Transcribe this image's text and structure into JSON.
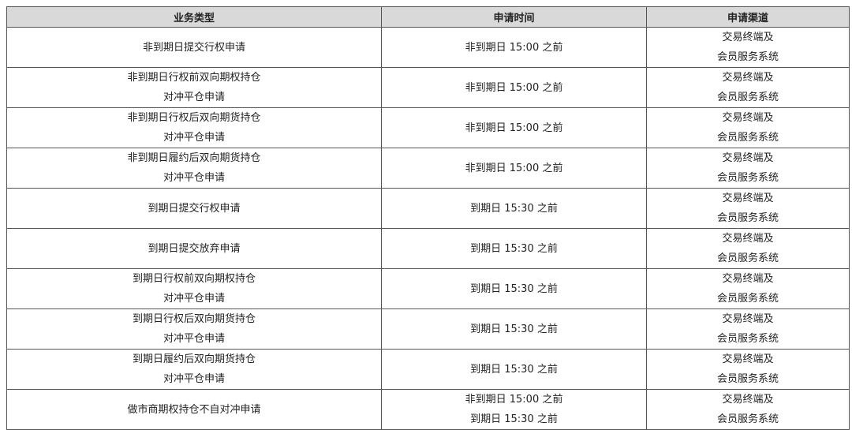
{
  "headers": [
    "业务类型",
    "申请时间",
    "申请渠道"
  ],
  "rows": [
    {
      "type": [
        "非到期日提交行权申请"
      ],
      "time": [
        "非到期日 15:00 之前"
      ],
      "channel": [
        "交易终端及",
        "会员服务系统"
      ]
    },
    {
      "type": [
        "非到期日行权前双向期权持仓",
        "对冲平仓申请"
      ],
      "time": [
        "非到期日 15:00 之前"
      ],
      "channel": [
        "交易终端及",
        "会员服务系统"
      ]
    },
    {
      "type": [
        "非到期日行权后双向期货持仓",
        "对冲平仓申请"
      ],
      "time": [
        "非到期日 15:00 之前"
      ],
      "channel": [
        "交易终端及",
        "会员服务系统"
      ]
    },
    {
      "type": [
        "非到期日履约后双向期货持仓",
        "对冲平仓申请"
      ],
      "time": [
        "非到期日 15:00 之前"
      ],
      "channel": [
        "交易终端及",
        "会员服务系统"
      ]
    },
    {
      "type": [
        "到期日提交行权申请"
      ],
      "time": [
        "到期日 15:30 之前"
      ],
      "channel": [
        "交易终端及",
        "会员服务系统"
      ]
    },
    {
      "type": [
        "到期日提交放弃申请"
      ],
      "time": [
        "到期日 15:30 之前"
      ],
      "channel": [
        "交易终端及",
        "会员服务系统"
      ]
    },
    {
      "type": [
        "到期日行权前双向期权持仓",
        "对冲平仓申请"
      ],
      "time": [
        "到期日 15:30 之前"
      ],
      "channel": [
        "交易终端及",
        "会员服务系统"
      ]
    },
    {
      "type": [
        "到期日行权后双向期货持仓",
        "对冲平仓申请"
      ],
      "time": [
        "到期日 15:30 之前"
      ],
      "channel": [
        "交易终端及",
        "会员服务系统"
      ]
    },
    {
      "type": [
        "到期日履约后双向期货持仓",
        "对冲平仓申请"
      ],
      "time": [
        "到期日 15:30 之前"
      ],
      "channel": [
        "交易终端及",
        "会员服务系统"
      ]
    },
    {
      "type": [
        "做市商期权持仓不自对冲申请"
      ],
      "time": [
        "非到期日 15:00 之前",
        "到期日 15:30 之前"
      ],
      "channel": [
        "交易终端及",
        "会员服务系统"
      ]
    }
  ]
}
